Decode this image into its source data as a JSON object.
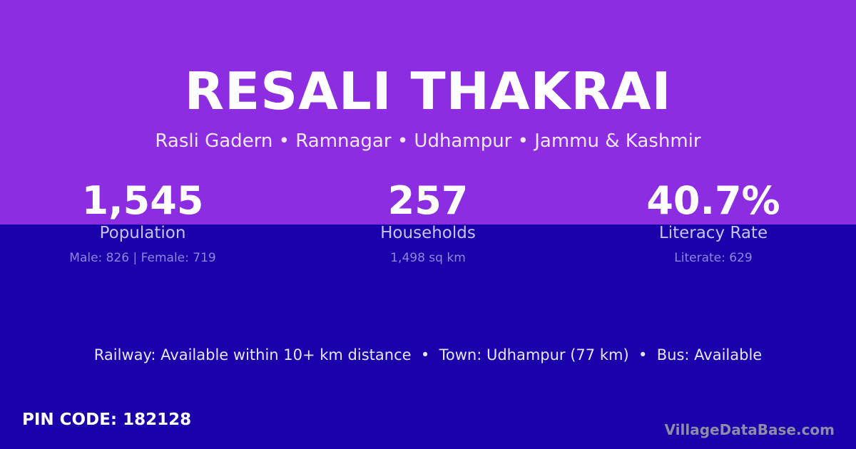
{
  "title": "RESALI THAKRAI",
  "subtitle": "Rasli Gadern • Ramnagar • Udhampur • Jammu & Kashmir",
  "stats": [
    {
      "value": "1,545",
      "label": "Population",
      "detail": "Male: 826 | Female: 719"
    },
    {
      "value": "257",
      "label": "Households",
      "detail": "1,498 sq km"
    },
    {
      "value": "40.7%",
      "label": "Literacy Rate",
      "detail": "Literate: 629"
    }
  ],
  "amenities": "Railway: Available within 10+ km distance  •  Town: Udhampur (77 km)  •  Bus: Available",
  "pin": "PIN CODE: 182128",
  "brand": "VillageDataBase.com",
  "colors": {
    "top": "#8d2de2",
    "bottom": "#1a00aa"
  }
}
